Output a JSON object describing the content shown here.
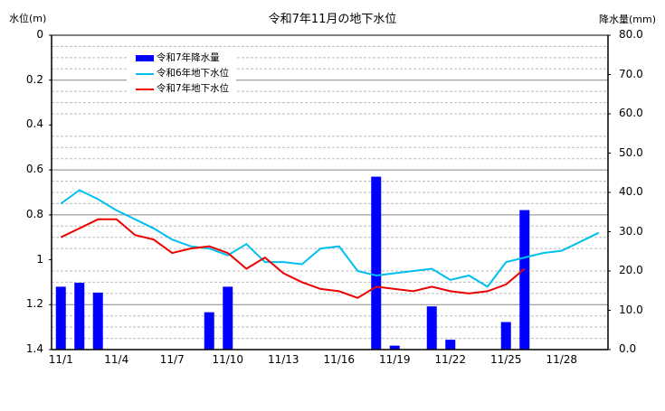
{
  "chart_data": {
    "type": "bar+line",
    "title": "令和7年11月の地下水位",
    "ylabel_left": "水位(m)",
    "ylabel_right": "降水量(mm)",
    "ylim_left": [
      0,
      1.4
    ],
    "ylim_left_inverted": true,
    "ylim_right": [
      0,
      80
    ],
    "y_ticks_left": [
      "0",
      "0.2",
      "0.4",
      "0.6",
      "0.8",
      "1",
      "1.2",
      "1.4"
    ],
    "y_ticks_right": [
      "80.0",
      "70.0",
      "60.0",
      "50.0",
      "40.0",
      "30.0",
      "20.0",
      "10.0",
      "0.0"
    ],
    "x_tick_labels": [
      "11/1",
      "11/4",
      "11/7",
      "11/10",
      "11/13",
      "11/16",
      "11/19",
      "11/22",
      "11/25",
      "11/28"
    ],
    "categories": [
      "11/1",
      "11/2",
      "11/3",
      "11/4",
      "11/5",
      "11/6",
      "11/7",
      "11/8",
      "11/9",
      "11/10",
      "11/11",
      "11/12",
      "11/13",
      "11/14",
      "11/15",
      "11/16",
      "11/17",
      "11/18",
      "11/19",
      "11/20",
      "11/21",
      "11/22",
      "11/23",
      "11/24",
      "11/25",
      "11/26",
      "11/27",
      "11/28",
      "11/29",
      "11/30"
    ],
    "grid": true,
    "legend_position": "upper-left-inside",
    "series": [
      {
        "name": "令和7年降水量",
        "type": "bar",
        "axis": "right",
        "color": "#0000ff",
        "values": [
          16.0,
          17.0,
          14.5,
          0,
          0,
          0,
          0,
          0,
          9.5,
          16.0,
          0,
          0,
          0,
          0,
          0,
          0,
          0,
          44.0,
          1.0,
          0,
          11.0,
          2.5,
          0,
          0,
          7.0,
          35.5,
          0,
          0,
          0,
          0
        ]
      },
      {
        "name": "令和6年地下水位",
        "type": "line",
        "axis": "left",
        "color": "#00c0f0",
        "values": [
          0.75,
          0.69,
          0.73,
          0.78,
          0.82,
          0.86,
          0.91,
          0.94,
          0.95,
          0.98,
          0.93,
          1.01,
          1.01,
          1.02,
          0.95,
          0.94,
          1.05,
          1.07,
          1.06,
          1.05,
          1.04,
          1.09,
          1.07,
          1.12,
          1.01,
          0.99,
          0.97,
          0.96,
          0.92,
          0.88
        ]
      },
      {
        "name": "令和7年地下水位",
        "type": "line",
        "axis": "left",
        "color": "#ee0000",
        "values": [
          0.9,
          0.86,
          0.82,
          0.82,
          0.89,
          0.91,
          0.97,
          0.95,
          0.94,
          0.97,
          1.04,
          0.99,
          1.06,
          1.1,
          1.13,
          1.14,
          1.17,
          1.12,
          1.13,
          1.14,
          1.12,
          1.14,
          1.15,
          1.14,
          1.11,
          1.04,
          null,
          null,
          null,
          null
        ]
      }
    ]
  }
}
